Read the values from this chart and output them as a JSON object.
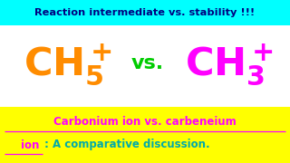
{
  "bg_color": "#ffffff",
  "top_bar_color": "#00ffff",
  "bottom_bar_color": "#ffff00",
  "top_text": "Reaction intermediate vs. stability !!!",
  "top_text_color": "#000080",
  "ch5_color": "#ff8c00",
  "vs_color": "#00cc00",
  "ch3_color": "#ff00ff",
  "bottom_line1": "Carbonium ion vs. carbeneium",
  "bottom_line2_magenta": "ion",
  "bottom_line2_teal": ": A comparative discussion.",
  "bottom_text_color": "#ff00ff",
  "bottom_teal_color": "#00aaaa"
}
